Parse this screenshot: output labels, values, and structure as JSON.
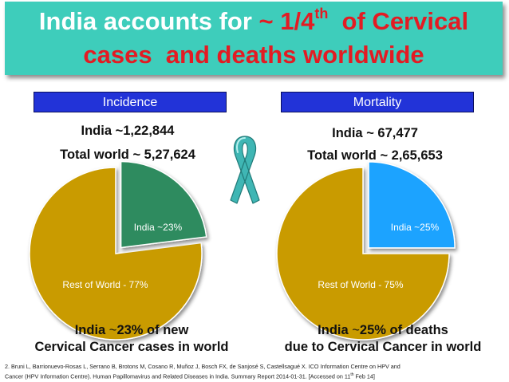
{
  "header": {
    "title_pre": "India accounts for ",
    "title_frac": "~ 1/4",
    "title_sup": "th",
    "title_post": "  of Cervical",
    "title_line2": "cases  and deaths worldwide"
  },
  "colors": {
    "banner": "#3ecdbb",
    "highlight": "#e31b23",
    "box": "#2233d8",
    "rest_of_world": "#c99b05",
    "india_incidence": "#2e8b5e",
    "india_mortality": "#1aa3ff",
    "ribbon": "#3fb6b4"
  },
  "ribbon_icon": "awareness-ribbon-icon",
  "incidence": {
    "label": "Incidence",
    "india_line": "India ~1,22,844",
    "world_line": "Total world ~ 5,27,624",
    "caption_pre": "India ",
    "caption_approx": "~",
    "caption_line1_rest": "23% of new",
    "caption_line2": "Cervical Cancer cases in world"
  },
  "mortality": {
    "label": "Mortality",
    "india_line": "India ~ 67,477",
    "world_line": "Total world ~ 2,65,653",
    "caption_pre": "India ",
    "caption_approx": "~",
    "caption_line1_rest": "25% of deaths",
    "caption_line2": "due to Cervical Cancer in world"
  },
  "chart_data": [
    {
      "type": "pie",
      "categories": [
        "India",
        "Rest of World"
      ],
      "values": [
        23,
        77
      ],
      "labels": [
        "India ~23%",
        "Rest of World - 77%"
      ],
      "exploded": "India"
    },
    {
      "type": "pie",
      "categories": [
        "India",
        "Rest of World"
      ],
      "values": [
        25,
        75
      ],
      "labels": [
        "India ~25%",
        "Rest of World - 75%"
      ],
      "exploded": "India"
    }
  ],
  "footnote": {
    "text1": "2. Bruni  L, Barrionuevo-Rosas L, Serrano B, Brotons M, Cosano R, Muñoz J, Bosch FX, de Sanjosé S, Castellsagué X. ICO Information Centre on HPV and",
    "text2a": "Cancer (HPV Information Centre). Human Papillomavirus and Related Diseases in India. Summary Report 2014-01-31. [Accessed on 11",
    "text2sup": "th",
    "text2b": " Feb 14]"
  }
}
